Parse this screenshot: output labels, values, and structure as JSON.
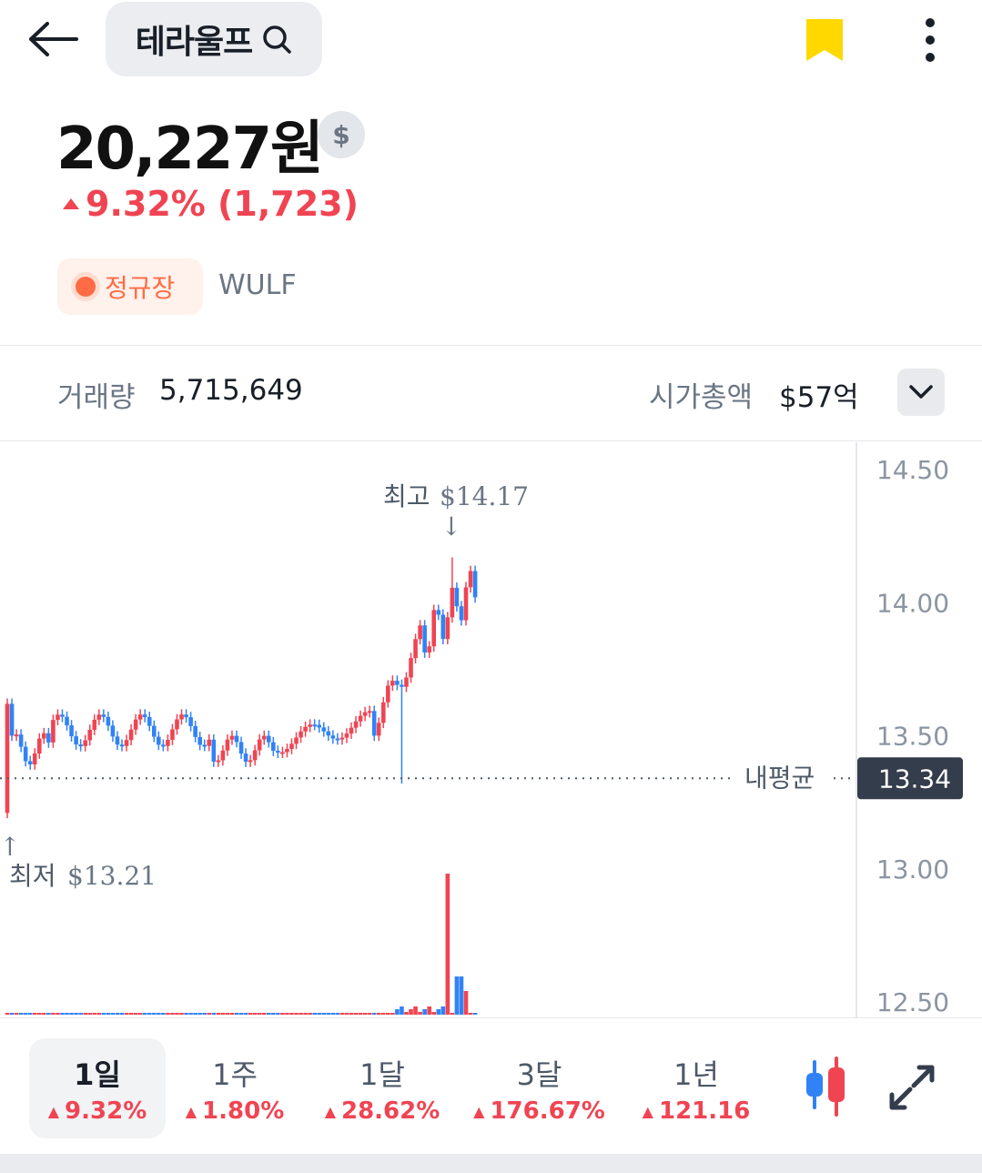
{
  "header": {
    "stock_name": "테라울프",
    "back_icon": "arrow-left-icon",
    "search_icon": "search-icon",
    "bookmark_icon": "bookmark-icon",
    "bookmark_color": "#ffd800",
    "more_icon": "more-vertical-icon"
  },
  "price": {
    "value": "20,227원",
    "currency_toggle": "$",
    "change_text": "9.32% (1,723)",
    "change_color": "#f04452"
  },
  "market": {
    "status": "정규장",
    "ticker": "WULF"
  },
  "stats": {
    "volume_label": "거래량",
    "volume_value": "5,715,649",
    "market_cap_label": "시가총액",
    "market_cap_value": "$57억",
    "expand_icon": "chevron-down-icon"
  },
  "chart_data": {
    "type": "candlestick",
    "y_ticks": [
      "14.50",
      "14.00",
      "13.50",
      "13.00",
      "12.50"
    ],
    "ylim": [
      12.5,
      14.5
    ],
    "high": {
      "label": "최고",
      "value": "$14.17"
    },
    "low": {
      "label": "최저",
      "value": "$13.21"
    },
    "avg_line": {
      "label": "내평균",
      "value": "13.34"
    },
    "up_color": "#f04452",
    "down_color": "#3182f6"
  },
  "tabs": [
    {
      "label": "1일",
      "change": "9.32%",
      "active": true
    },
    {
      "label": "1주",
      "change": "1.80%",
      "active": false
    },
    {
      "label": "1달",
      "change": "28.62%",
      "active": false
    },
    {
      "label": "3달",
      "change": "176.67%",
      "active": false
    },
    {
      "label": "1년",
      "change": "121.16",
      "active": false
    }
  ],
  "controls": {
    "candle_icon": "candlestick-toggle-icon",
    "fullscreen_icon": "fullscreen-icon"
  }
}
